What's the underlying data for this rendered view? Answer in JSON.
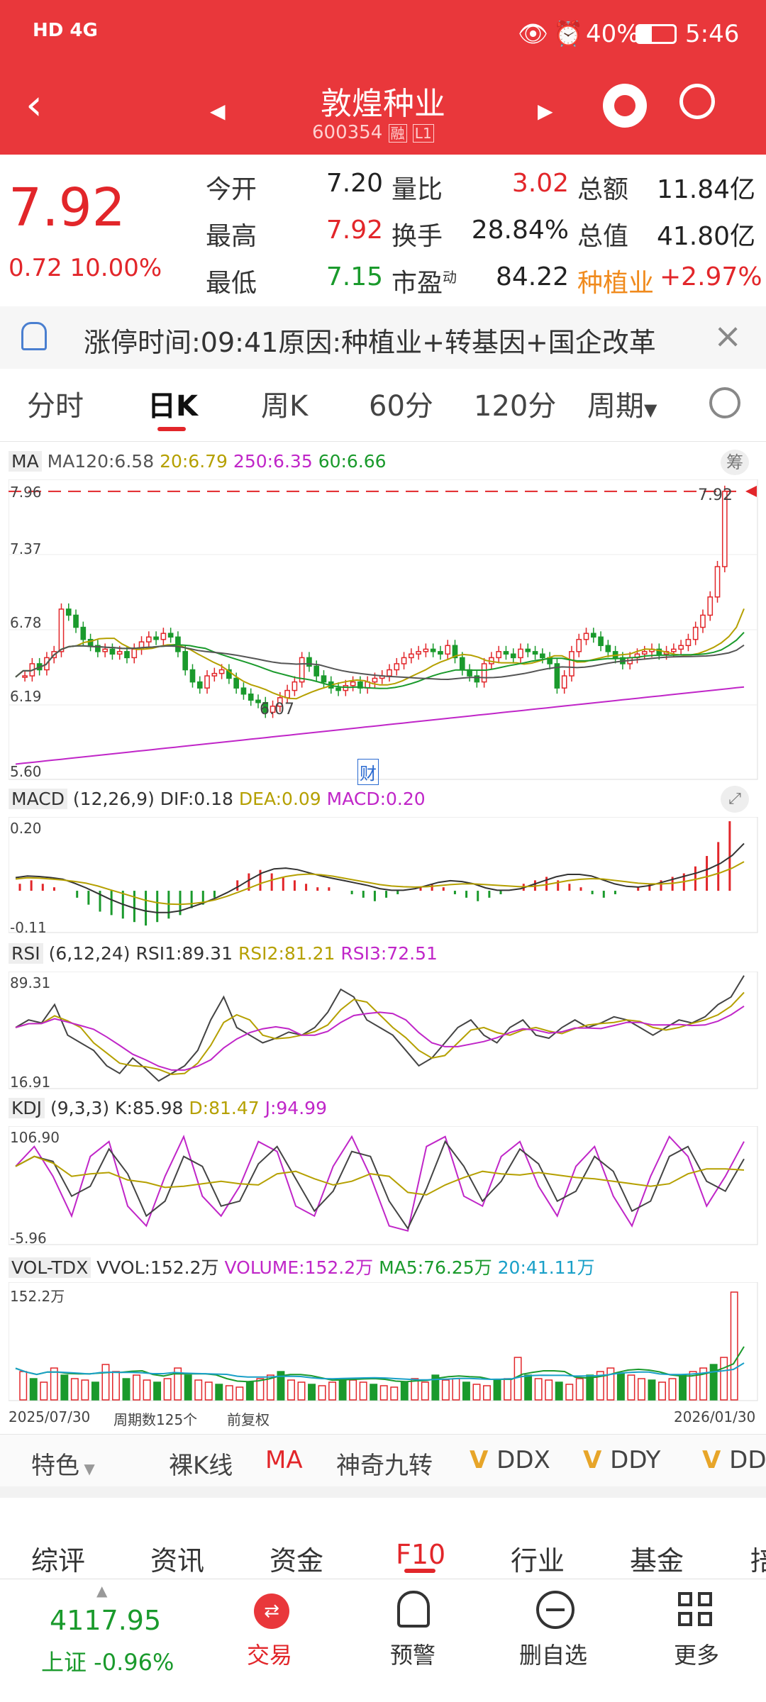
{
  "status": {
    "signal": "HD 4G",
    "battery": "40%",
    "time": "5:46"
  },
  "header": {
    "name": "敦煌种业",
    "code": "600354",
    "badge1": "融",
    "badge2": "L1"
  },
  "quote": {
    "price": "7.92",
    "change": "0.72 10.00%",
    "rows": [
      [
        {
          "label": "今开",
          "value": "7.20"
        },
        {
          "label": "量比",
          "value": "3.02"
        },
        {
          "label": "总额",
          "value": "11.84亿"
        }
      ],
      [
        {
          "label": "最高",
          "value": "7.92"
        },
        {
          "label": "换手",
          "value": "28.84%"
        },
        {
          "label": "总值",
          "value": "41.80亿"
        }
      ],
      [
        {
          "label": "最低",
          "value": "7.15"
        },
        {
          "label": "市盈",
          "sup": "动",
          "value": "84.22"
        },
        {
          "label": "种植业",
          "value": "+2.97%"
        }
      ]
    ]
  },
  "notice": {
    "text": "涨停时间:09:41原因:种植业+转基因+国企改革"
  },
  "tabs": [
    "分时",
    "日K",
    "周K",
    "60分",
    "120分",
    "周期"
  ],
  "chart_data": [
    {
      "type": "candlestick",
      "panel": "MA",
      "legend": {
        "label": "MA",
        "ma120": "MA120:6.58",
        "ma20": "20:6.79",
        "ma250": "250:6.35",
        "ma60": "60:6.66",
        "chip": "筹"
      },
      "y_ticks": [
        "7.96",
        "7.37",
        "6.78",
        "6.19",
        "5.60"
      ],
      "ylim": [
        5.6,
        7.96
      ],
      "annotations": {
        "high": "7.92",
        "low": "6.07",
        "event": "财"
      },
      "close": [
        6.4,
        6.5,
        6.45,
        6.55,
        6.6,
        6.95,
        6.9,
        6.8,
        6.7,
        6.65,
        6.6,
        6.62,
        6.58,
        6.6,
        6.55,
        6.62,
        6.68,
        6.72,
        6.7,
        6.75,
        6.72,
        6.6,
        6.45,
        6.35,
        6.3,
        6.4,
        6.42,
        6.45,
        6.38,
        6.3,
        6.25,
        6.2,
        6.18,
        6.1,
        6.15,
        6.22,
        6.28,
        6.35,
        6.55,
        6.48,
        6.4,
        6.35,
        6.3,
        6.28,
        6.32,
        6.35,
        6.3,
        6.35,
        6.38,
        6.4,
        6.45,
        6.5,
        6.55,
        6.58,
        6.6,
        6.62,
        6.6,
        6.58,
        6.65,
        6.55,
        6.45,
        6.4,
        6.35,
        6.5,
        6.55,
        6.6,
        6.58,
        6.55,
        6.62,
        6.6,
        6.58,
        6.55,
        6.5,
        6.3,
        6.4,
        6.6,
        6.7,
        6.75,
        6.72,
        6.65,
        6.6,
        6.55,
        6.5,
        6.55,
        6.58,
        6.6,
        6.62,
        6.58,
        6.6,
        6.62,
        6.65,
        6.7,
        6.8,
        6.9,
        7.05,
        7.3,
        7.92
      ]
    },
    {
      "type": "bar",
      "panel": "MACD",
      "legend": {
        "label": "MACD",
        "params": "(12,26,9)",
        "dif": "DIF:0.18",
        "dea": "DEA:0.09",
        "macd": "MACD:0.20"
      },
      "y_ticks": [
        "0.20",
        "-0.11"
      ],
      "ylim": [
        -0.11,
        0.2
      ],
      "macd": [
        0.02,
        0.03,
        0.02,
        0.01,
        0.0,
        -0.02,
        -0.04,
        -0.06,
        -0.07,
        -0.08,
        -0.09,
        -0.1,
        -0.09,
        -0.08,
        -0.07,
        -0.05,
        -0.04,
        -0.02,
        0.0,
        0.03,
        0.05,
        0.06,
        0.05,
        0.04,
        0.03,
        0.02,
        0.01,
        0.01,
        0.0,
        -0.01,
        -0.02,
        -0.03,
        -0.02,
        -0.01,
        0.0,
        0.01,
        0.02,
        0.01,
        -0.01,
        -0.02,
        -0.03,
        -0.02,
        -0.01,
        0.0,
        0.02,
        0.03,
        0.04,
        0.03,
        0.02,
        0.01,
        -0.01,
        -0.02,
        -0.01,
        0.0,
        0.01,
        0.02,
        0.03,
        0.04,
        0.05,
        0.07,
        0.1,
        0.14,
        0.2
      ]
    },
    {
      "type": "line",
      "panel": "RSI",
      "legend": {
        "label": "RSI",
        "params": "(6,12,24)",
        "rsi1": "RSI1:89.31",
        "rsi2": "RSI2:81.21",
        "rsi3": "RSI3:72.51"
      },
      "y_ticks": [
        "89.31",
        "16.91"
      ],
      "ylim": [
        16.91,
        89.31
      ],
      "rsi1": [
        55,
        60,
        58,
        70,
        50,
        45,
        40,
        30,
        25,
        35,
        28,
        20,
        25,
        30,
        40,
        60,
        75,
        55,
        50,
        45,
        48,
        52,
        50,
        55,
        65,
        80,
        75,
        60,
        55,
        50,
        40,
        30,
        35,
        45,
        55,
        60,
        50,
        45,
        55,
        60,
        50,
        48,
        55,
        60,
        55,
        58,
        62,
        60,
        55,
        50,
        55,
        60,
        58,
        62,
        70,
        75,
        89
      ]
    },
    {
      "type": "line",
      "panel": "KDJ",
      "legend": {
        "label": "KDJ",
        "params": "(9,3,3)",
        "k": "K:85.98",
        "d": "D:81.47",
        "j": "J:94.99"
      },
      "y_ticks": [
        "106.90",
        "-5.96"
      ],
      "ylim": [
        -5.96,
        106.9
      ],
      "j": [
        70,
        90,
        60,
        20,
        80,
        95,
        30,
        10,
        60,
        100,
        40,
        20,
        50,
        95,
        85,
        30,
        20,
        70,
        100,
        60,
        10,
        5,
        90,
        100,
        40,
        30,
        80,
        95,
        50,
        20,
        70,
        90,
        40,
        10,
        60,
        100,
        80,
        30,
        60,
        95
      ]
    },
    {
      "type": "bar",
      "panel": "VOL-TDX",
      "legend": {
        "label": "VOL-TDX",
        "vvol": "VVOL:152.2万",
        "volume": "VOLUME:152.2万",
        "ma5": "MA5:76.25万",
        "ma20": "20:41.11万"
      },
      "y_ticks": [
        "152.2万"
      ],
      "ylim": [
        0,
        152.2
      ],
      "volume": [
        40,
        30,
        25,
        45,
        35,
        30,
        28,
        25,
        50,
        40,
        30,
        35,
        28,
        25,
        30,
        45,
        35,
        28,
        25,
        22,
        20,
        18,
        25,
        30,
        35,
        40,
        28,
        25,
        22,
        20,
        25,
        30,
        28,
        25,
        22,
        20,
        18,
        25,
        30,
        25,
        35,
        28,
        30,
        25,
        22,
        20,
        28,
        30,
        60,
        35,
        30,
        28,
        25,
        22,
        30,
        35,
        40,
        45,
        38,
        35,
        30,
        28,
        25,
        30,
        35,
        40,
        45,
        50,
        60,
        152.2
      ]
    }
  ],
  "x_axis": {
    "start": "2025/07/30",
    "count": "周期数125个",
    "adjust": "前复权",
    "end": "2026/01/30"
  },
  "indicator_tabs": [
    "特色",
    "裸K线",
    "MA",
    "神奇九转",
    "DDX",
    "DDY",
    "DDZ"
  ],
  "f10_tabs": [
    "综评",
    "资讯",
    "资金",
    "F10",
    "行业",
    "基金",
    "掊"
  ],
  "bottom_nav": {
    "index_value": "4117.95",
    "index_name": "上证 -0.96%",
    "items": [
      "交易",
      "预警",
      "删自选",
      "更多"
    ]
  }
}
